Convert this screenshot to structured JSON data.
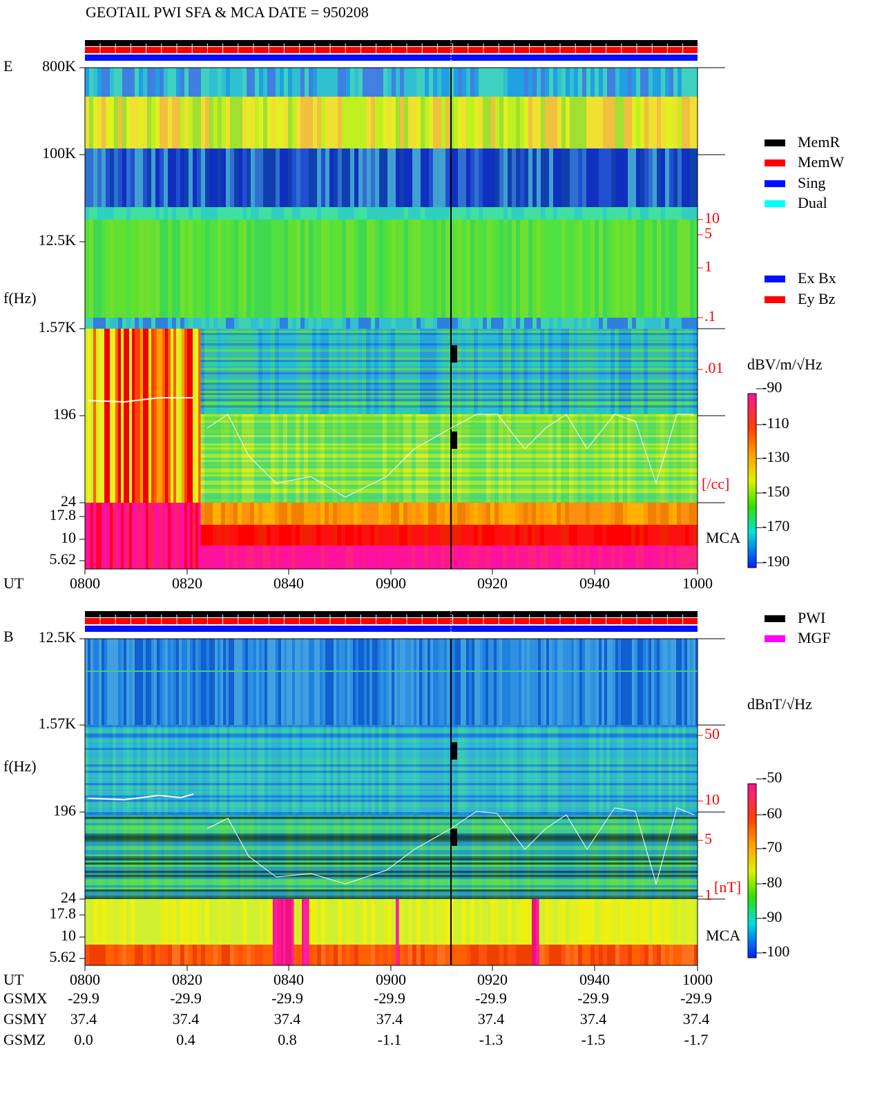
{
  "title": "GEOTAIL  PWI SFA & MCA   DATE = 950208",
  "legend_mode": [
    "MemR",
    "MemW",
    "Sing",
    "Dual"
  ],
  "legend_axes": [
    "Ex Bx",
    "Ey Bz"
  ],
  "legend_source": [
    "PWI",
    "MGF"
  ],
  "panels": [
    {
      "label": "E",
      "y_label": "f(Hz)",
      "y_ticks": [
        "800K",
        "100K",
        "12.5K",
        "1.57K",
        "196",
        "24",
        "17.8",
        "10",
        "5.62"
      ],
      "mca_label": "MCA",
      "right_ticks": [
        "10",
        "5",
        "1",
        ".1",
        ".01"
      ],
      "right_unit": "[/cc]",
      "x_label": "UT",
      "x_ticks": [
        "0800",
        "0820",
        "0840",
        "0900",
        "0920",
        "0940",
        "1000"
      ],
      "colorbar_unit": "dBV/m/√Hz",
      "colorbar_ticks": [
        "-90",
        "-110",
        "-130",
        "-150",
        "-170",
        "-190"
      ]
    },
    {
      "label": "B",
      "y_label": "f(Hz)",
      "y_ticks": [
        "12.5K",
        "1.57K",
        "196",
        "24",
        "17.8",
        "10",
        "5.62"
      ],
      "mca_label": "MCA",
      "right_ticks": [
        "50",
        "10",
        "5",
        "1"
      ],
      "right_unit": "[nT]",
      "x_label": "UT",
      "x_ticks": [
        "0800",
        "0820",
        "0840",
        "0900",
        "0920",
        "0940",
        "1000"
      ],
      "colorbar_unit": "dBnT/√Hz",
      "colorbar_ticks": [
        "-50",
        "-60",
        "-70",
        "-80",
        "-90",
        "-100"
      ]
    }
  ],
  "orbit": [
    {
      "label": "GSMX",
      "values": [
        "-29.9",
        "-29.9",
        "-29.9",
        "-29.9",
        "-29.9",
        "-29.9",
        "-29.9"
      ]
    },
    {
      "label": "GSMY",
      "values": [
        "37.4",
        "37.4",
        "37.4",
        "37.4",
        "37.4",
        "37.4",
        "37.4"
      ]
    },
    {
      "label": "GSMZ",
      "values": [
        "0.0",
        "0.4",
        "0.8",
        "-1.1",
        "-1.3",
        "-1.5",
        "-1.7"
      ]
    }
  ]
}
